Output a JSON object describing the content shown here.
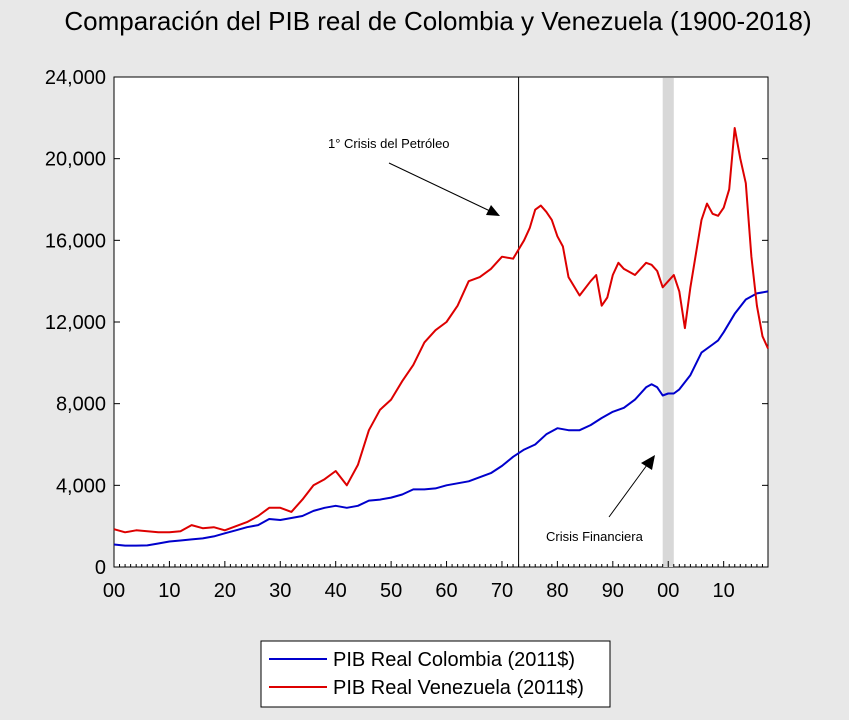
{
  "chart_data": {
    "type": "line",
    "title": "Comparación del PIB real de Colombia y Venezuela (1900-2018)",
    "xlabel": "",
    "ylabel": "",
    "xlim": [
      1900,
      2018
    ],
    "ylim": [
      0,
      24000
    ],
    "x_ticks": [
      1900,
      1910,
      1920,
      1930,
      1940,
      1950,
      1960,
      1970,
      1980,
      1990,
      2000,
      2010
    ],
    "x_tick_labels": [
      "00",
      "10",
      "20",
      "30",
      "40",
      "50",
      "60",
      "70",
      "80",
      "90",
      "00",
      "10"
    ],
    "y_ticks": [
      0,
      4000,
      8000,
      12000,
      16000,
      20000,
      24000
    ],
    "y_tick_labels": [
      "0",
      "4,000",
      "8,000",
      "12,000",
      "16,000",
      "20,000",
      "24,000"
    ],
    "grid": false,
    "legend_position": "bottom",
    "annotations": {
      "oil_crisis": {
        "text": "1° Crisis del Petróleo",
        "year": 1973
      },
      "financial_crisis": {
        "text": "Crisis Financiera",
        "start": 1999,
        "end": 2001
      }
    },
    "series": [
      {
        "name": "PIB Real Colombia (2011$)",
        "color": "#0000cc",
        "x": [
          1900,
          1902,
          1904,
          1906,
          1908,
          1910,
          1912,
          1914,
          1916,
          1918,
          1920,
          1922,
          1924,
          1926,
          1928,
          1930,
          1932,
          1934,
          1936,
          1938,
          1940,
          1942,
          1944,
          1946,
          1948,
          1950,
          1952,
          1954,
          1956,
          1958,
          1960,
          1962,
          1964,
          1966,
          1968,
          1970,
          1972,
          1974,
          1976,
          1978,
          1980,
          1982,
          1984,
          1986,
          1988,
          1990,
          1992,
          1994,
          1996,
          1997,
          1998,
          1999,
          2000,
          2001,
          2002,
          2004,
          2006,
          2008,
          2009,
          2010,
          2012,
          2014,
          2016,
          2018
        ],
        "values": [
          1100,
          1050,
          1050,
          1060,
          1150,
          1250,
          1300,
          1350,
          1400,
          1500,
          1650,
          1800,
          1950,
          2050,
          2350,
          2300,
          2400,
          2500,
          2750,
          2900,
          3000,
          2900,
          3000,
          3250,
          3300,
          3400,
          3550,
          3800,
          3800,
          3850,
          4000,
          4100,
          4200,
          4400,
          4600,
          4950,
          5400,
          5750,
          6000,
          6500,
          6800,
          6700,
          6700,
          6950,
          7300,
          7600,
          7800,
          8200,
          8800,
          8950,
          8800,
          8400,
          8500,
          8500,
          8700,
          9400,
          10500,
          10900,
          11100,
          11500,
          12400,
          13100,
          13400,
          13500
        ]
      },
      {
        "name": "PIB Real Venezuela (2011$)",
        "color": "#dd0000",
        "x": [
          1900,
          1902,
          1904,
          1906,
          1908,
          1910,
          1912,
          1914,
          1916,
          1918,
          1920,
          1922,
          1924,
          1926,
          1928,
          1930,
          1932,
          1934,
          1936,
          1938,
          1940,
          1942,
          1944,
          1946,
          1948,
          1950,
          1952,
          1954,
          1956,
          1958,
          1960,
          1962,
          1964,
          1966,
          1968,
          1970,
          1972,
          1974,
          1975,
          1976,
          1977,
          1978,
          1979,
          1980,
          1981,
          1982,
          1984,
          1986,
          1987,
          1988,
          1989,
          1990,
          1991,
          1992,
          1994,
          1996,
          1997,
          1998,
          1999,
          2000,
          2001,
          2002,
          2003,
          2004,
          2006,
          2007,
          2008,
          2009,
          2010,
          2011,
          2012,
          2013,
          2014,
          2015,
          2016,
          2017,
          2018
        ],
        "values": [
          1850,
          1700,
          1800,
          1750,
          1700,
          1700,
          1750,
          2050,
          1900,
          1950,
          1800,
          2000,
          2200,
          2500,
          2900,
          2900,
          2700,
          3300,
          4000,
          4300,
          4700,
          4000,
          5000,
          6700,
          7700,
          8200,
          9100,
          9900,
          11000,
          11600,
          12000,
          12800,
          14000,
          14200,
          14600,
          15200,
          15100,
          16000,
          16600,
          17500,
          17700,
          17400,
          17000,
          16200,
          15700,
          14200,
          13300,
          14000,
          14300,
          12800,
          13200,
          14300,
          14900,
          14600,
          14300,
          14900,
          14800,
          14500,
          13700,
          14000,
          14300,
          13500,
          11700,
          13700,
          17000,
          17800,
          17300,
          17200,
          17600,
          18500,
          21500,
          20000,
          18800,
          15200,
          12800,
          11300,
          10700
        ]
      }
    ]
  }
}
